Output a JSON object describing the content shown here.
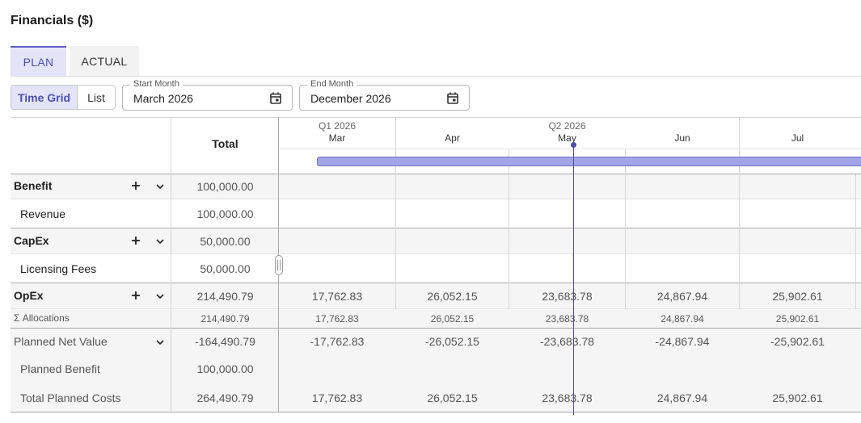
{
  "title": "Financials ($)",
  "tabs": {
    "plan": "PLAN",
    "actual": "ACTUAL"
  },
  "view_toggle": {
    "time_grid": "Time Grid",
    "list": "List"
  },
  "start_month": {
    "label": "Start Month",
    "value": "March 2026"
  },
  "end_month": {
    "label": "End Month",
    "value": "December 2026"
  },
  "grid": {
    "total_header": "Total",
    "quarters": [
      "Q1 2026",
      "Q2 2026"
    ],
    "months": [
      "Mar",
      "Apr",
      "May",
      "Jun",
      "Jul"
    ],
    "rows": {
      "benefit": {
        "label": "Benefit",
        "total": "100,000.00"
      },
      "revenue": {
        "label": "Revenue",
        "total": "100,000.00"
      },
      "capex": {
        "label": "CapEx",
        "total": "50,000.00"
      },
      "licensing": {
        "label": "Licensing Fees",
        "total": "50,000.00"
      },
      "opex": {
        "label": "OpEx",
        "total": "214,490.79",
        "months": [
          "17,762.83",
          "26,052.15",
          "23,683.78",
          "24,867.94",
          "25,902.61"
        ]
      },
      "allocations": {
        "label": "Σ Allocations",
        "total": "214,490.79",
        "months": [
          "17,762.83",
          "26,052.15",
          "23,683.78",
          "24,867.94",
          "25,902.61"
        ]
      },
      "net_value": {
        "label": "Planned Net Value",
        "total": "-164,490.79",
        "months": [
          "-17,762.83",
          "-26,052.15",
          "-23,683.78",
          "-24,867.94",
          "-25,902.61"
        ]
      },
      "planned_benefit": {
        "label": "Planned Benefit",
        "total": "100,000.00"
      },
      "planned_costs": {
        "label": "Total Planned Costs",
        "total": "264,490.79",
        "months": [
          "17,762.83",
          "26,052.15",
          "23,683.78",
          "24,867.94",
          "25,902.61"
        ]
      }
    }
  },
  "colors": {
    "accent": "#5b5fc7",
    "accent_bg": "#e3e4f7",
    "timeline_bar": "#a3a6e6",
    "today_line": "#4a4fa8"
  }
}
